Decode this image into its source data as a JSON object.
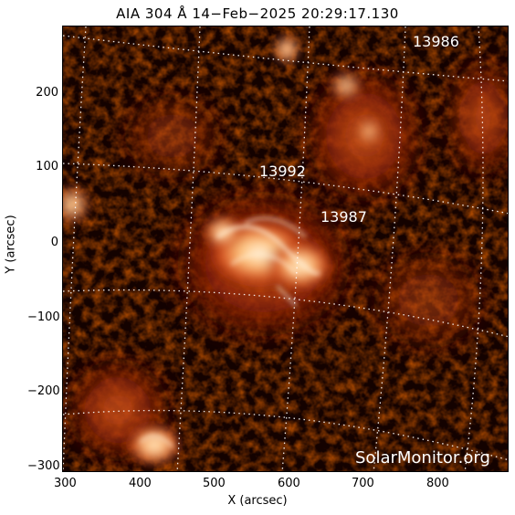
{
  "title": "AIA 304 Å 14−Feb−2025 20:29:17.130",
  "x_axis": {
    "label": "X (arcsec)",
    "ticks": [
      "300",
      "400",
      "500",
      "600",
      "700",
      "800"
    ]
  },
  "y_axis": {
    "label": "Y (arcsec)",
    "ticks": [
      "200",
      "100",
      "0",
      "−100",
      "−200",
      "−300"
    ]
  },
  "regions": [
    {
      "label": "13986"
    },
    {
      "label": "13992"
    },
    {
      "label": "13987"
    }
  ],
  "watermark": "SolarMonitor.org",
  "colors": {
    "background": "#000000",
    "plasma_dark": "#5a0a00",
    "plasma_mid": "#c83a10",
    "plasma_bright": "#ff9a3c",
    "plasma_hot": "#fff2d6",
    "grid": "#ffffff",
    "label": "#ffffff"
  }
}
